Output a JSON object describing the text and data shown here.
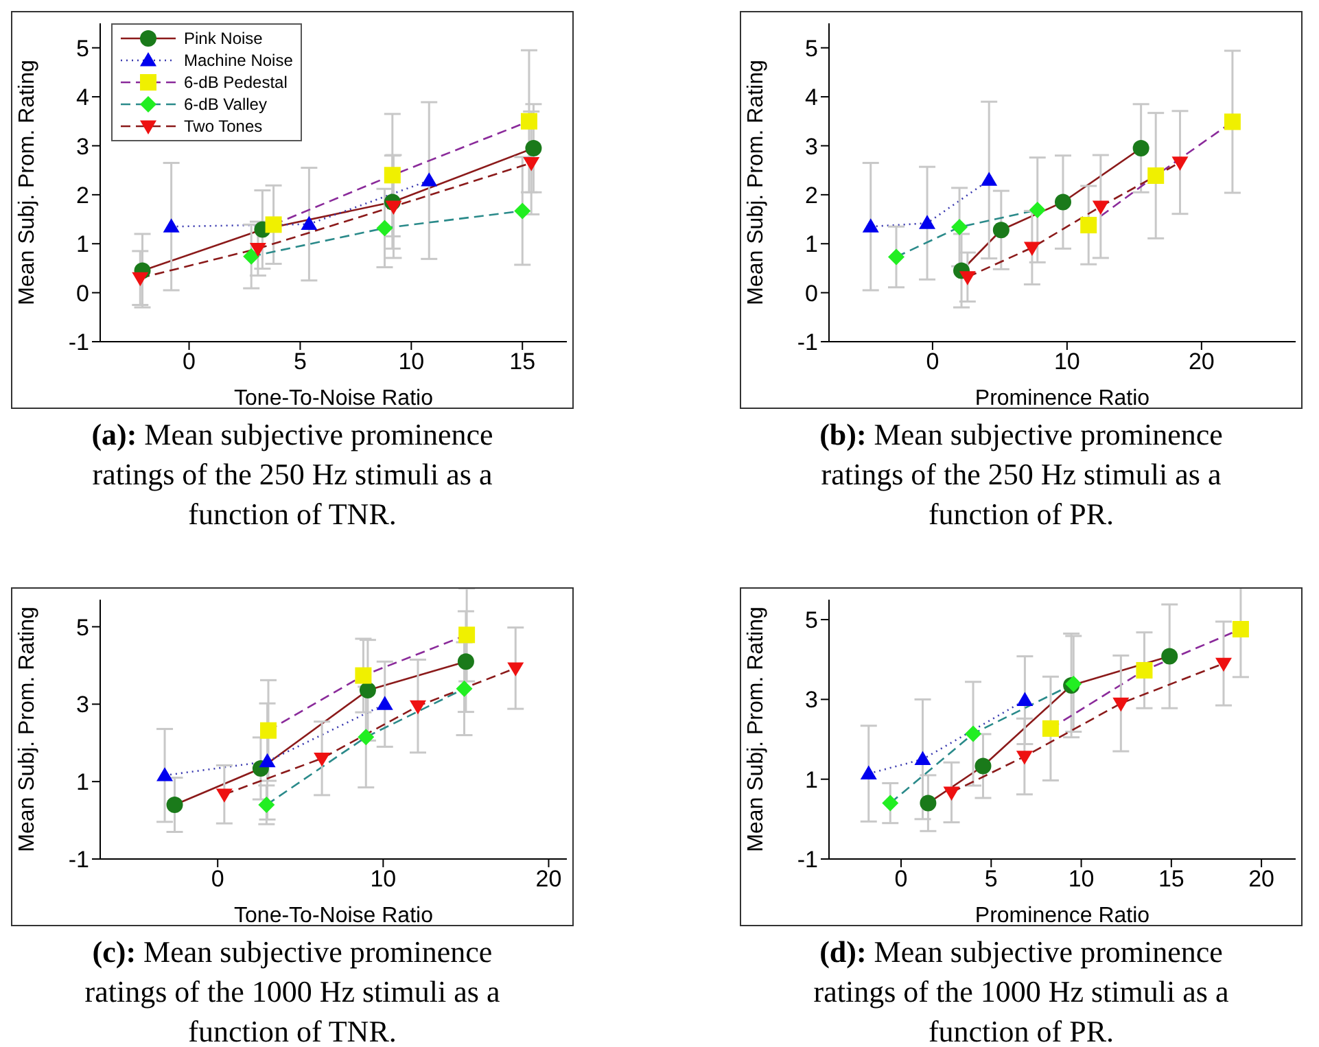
{
  "chart_data": [
    {
      "type": "line",
      "xlabel": "Tone-To-Noise Ratio",
      "ylabel": "Mean Subj. Prom. Rating",
      "xlim": [
        -4,
        17
      ],
      "ylim": [
        -1,
        5.5
      ],
      "xticks": [
        0,
        5,
        10,
        15
      ],
      "yticks": [
        -1,
        0,
        1,
        2,
        3,
        4,
        5
      ],
      "legend": "top left",
      "annotations": [
        "(a): Mean subjective prominence ratings of the 250 Hz stimuli as a function of TNR."
      ],
      "series": [
        {
          "name": "Pink Noise",
          "color": "#1a7a1a",
          "marker": "circle",
          "line_style": "solid",
          "x": [
            -2.1,
            3.3,
            9.15,
            15.5
          ],
          "values": [
            0.45,
            1.29,
            1.85,
            2.95
          ],
          "errors": [
            0.75,
            0.8,
            0.95,
            0.9
          ]
        },
        {
          "name": "Machine Noise",
          "color": "#0000ee",
          "marker": "triangle",
          "line_style": "dotted",
          "x": [
            -0.8,
            5.4,
            10.8
          ],
          "values": [
            1.35,
            1.4,
            2.29
          ],
          "errors": [
            1.3,
            1.15,
            1.6
          ]
        },
        {
          "name": "6-dB Pedestal",
          "color": "#f0f000",
          "marker": "square",
          "line_style": "dashed",
          "x": [
            3.8,
            9.15,
            15.3
          ],
          "values": [
            1.39,
            2.4,
            3.5
          ],
          "errors": [
            0.8,
            1.25,
            1.45
          ]
        },
        {
          "name": "6-dB Valley",
          "color": "#22ee22",
          "marker": "diamond",
          "line_style": "dashed",
          "x": [
            2.8,
            8.8,
            15.0
          ],
          "values": [
            0.74,
            1.32,
            1.67
          ],
          "errors": [
            0.65,
            0.8,
            1.1
          ]
        },
        {
          "name": "Two Tones",
          "color": "#ee1111",
          "marker": "triangle-down",
          "line_style": "dashed",
          "x": [
            -2.2,
            3.1,
            9.2,
            15.4
          ],
          "values": [
            0.3,
            0.9,
            1.76,
            2.65
          ],
          "errors": [
            0.55,
            0.55,
            1.05,
            1.05
          ]
        }
      ]
    },
    {
      "type": "line",
      "xlabel": "Prominence Ratio",
      "ylabel": "Mean Subj. Prom. Rating",
      "xlim": [
        -7.7,
        27
      ],
      "ylim": [
        -1,
        5.5
      ],
      "xticks": [
        0,
        10,
        20
      ],
      "yticks": [
        -1,
        0,
        1,
        2,
        3,
        4,
        5
      ],
      "legend": false,
      "annotations": [
        "(b): Mean subjective prominence ratings of the 250 Hz stimuli as a function of PR."
      ],
      "series": [
        {
          "color": "#1a7a1a",
          "marker": "circle",
          "line_style": "solid",
          "x": [
            2.15,
            5.1,
            9.7,
            15.5
          ],
          "values": [
            0.45,
            1.28,
            1.85,
            2.95
          ],
          "errors": [
            0.75,
            0.8,
            0.95,
            0.9
          ]
        },
        {
          "color": "#0000ee",
          "marker": "triangle",
          "line_style": "dotted",
          "x": [
            -4.6,
            -0.4,
            4.2
          ],
          "values": [
            1.35,
            1.42,
            2.3
          ],
          "errors": [
            1.3,
            1.15,
            1.6
          ]
        },
        {
          "color": "#f0f000",
          "marker": "square",
          "line_style": "dashed",
          "x": [
            11.6,
            16.6,
            22.3
          ],
          "values": [
            1.38,
            2.39,
            3.49
          ],
          "errors": [
            0.8,
            1.28,
            1.45
          ]
        },
        {
          "color": "#22ee22",
          "marker": "diamond",
          "line_style": "dashed",
          "x": [
            -2.7,
            2.0,
            7.8
          ],
          "values": [
            0.73,
            1.34,
            1.69
          ],
          "errors": [
            0.62,
            0.8,
            1.07
          ]
        },
        {
          "color": "#ee1111",
          "marker": "triangle-down",
          "line_style": "dashed",
          "x": [
            2.6,
            7.4,
            12.5,
            18.4
          ],
          "values": [
            0.32,
            0.92,
            1.76,
            2.66
          ],
          "errors": [
            0.5,
            0.75,
            1.05,
            1.05
          ]
        }
      ]
    },
    {
      "type": "line",
      "xlabel": "Tone-To-Noise Ratio",
      "ylabel": "Mean Subj. Prom. Rating",
      "xlim": [
        -7.1,
        21.1
      ],
      "ylim": [
        -1,
        5.7
      ],
      "xticks": [
        0,
        10,
        20
      ],
      "yticks": [
        -1,
        1,
        3,
        5
      ],
      "legend": false,
      "annotations": [
        "(c): Mean subjective prominence ratings of the 1000 Hz stimuli as a function of TNR."
      ],
      "series": [
        {
          "color": "#1a7a1a",
          "marker": "circle",
          "line_style": "solid",
          "x": [
            -2.6,
            2.6,
            9.07,
            15.0
          ],
          "values": [
            0.4,
            1.34,
            3.36,
            4.1
          ],
          "errors": [
            0.7,
            0.8,
            1.3,
            1.3
          ]
        },
        {
          "color": "#0000ee",
          "marker": "triangle",
          "line_style": "dotted",
          "x": [
            -3.2,
            3.0,
            10.1
          ],
          "values": [
            1.16,
            1.52,
            3.0
          ],
          "errors": [
            1.2,
            1.5,
            1.1
          ]
        },
        {
          "color": "#f0f000",
          "marker": "square",
          "line_style": "dashed",
          "x": [
            3.06,
            8.8,
            15.05
          ],
          "values": [
            2.32,
            3.74,
            4.79
          ],
          "errors": [
            1.3,
            0.95,
            1.2
          ]
        },
        {
          "color": "#22ee22",
          "marker": "diamond",
          "line_style": "dashed",
          "x": [
            2.95,
            8.96,
            14.9
          ],
          "values": [
            0.4,
            2.15,
            3.4
          ],
          "errors": [
            0.5,
            1.3,
            1.2
          ]
        },
        {
          "color": "#ee1111",
          "marker": "triangle-down",
          "line_style": "dashed",
          "x": [
            0.4,
            6.3,
            12.1,
            18.0
          ],
          "values": [
            0.67,
            1.6,
            2.95,
            3.93
          ],
          "errors": [
            0.75,
            0.95,
            1.2,
            1.05
          ]
        }
      ]
    },
    {
      "type": "line",
      "xlabel": "Prominence Ratio",
      "ylabel": "Mean Subj. Prom. Rating",
      "xlim": [
        -4,
        21.9
      ],
      "ylim": [
        -1,
        5.5
      ],
      "xticks": [
        0,
        5,
        10,
        15,
        20
      ],
      "yticks": [
        -1,
        1,
        3,
        5
      ],
      "legend": false,
      "annotations": [
        "(d): Mean subjective prominence ratings of the 1000 Hz stimuli as a function of PR."
      ],
      "series": [
        {
          "color": "#1a7a1a",
          "marker": "circle",
          "line_style": "solid",
          "x": [
            1.5,
            4.55,
            9.45,
            14.9
          ],
          "values": [
            0.4,
            1.33,
            3.35,
            4.08
          ],
          "errors": [
            0.7,
            0.8,
            1.3,
            1.3
          ]
        },
        {
          "color": "#0000ee",
          "marker": "triangle",
          "line_style": "dotted",
          "x": [
            -1.8,
            1.2,
            6.87
          ],
          "values": [
            1.14,
            1.5,
            2.98
          ],
          "errors": [
            1.2,
            1.5,
            1.1
          ]
        },
        {
          "color": "#f0f000",
          "marker": "square",
          "line_style": "dashed",
          "x": [
            8.3,
            13.5,
            18.85
          ],
          "values": [
            2.27,
            3.73,
            4.76
          ],
          "errors": [
            1.3,
            0.95,
            1.2
          ]
        },
        {
          "color": "#22ee22",
          "marker": "diamond",
          "line_style": "dashed",
          "x": [
            -0.6,
            4.0,
            9.57
          ],
          "values": [
            0.4,
            2.14,
            3.39
          ],
          "errors": [
            0.5,
            1.3,
            1.2
          ]
        },
        {
          "color": "#ee1111",
          "marker": "triangle-down",
          "line_style": "dashed",
          "x": [
            2.8,
            6.85,
            12.2,
            17.9
          ],
          "values": [
            0.67,
            1.57,
            2.9,
            3.9
          ],
          "errors": [
            0.75,
            0.95,
            1.2,
            1.05
          ]
        }
      ]
    }
  ]
}
